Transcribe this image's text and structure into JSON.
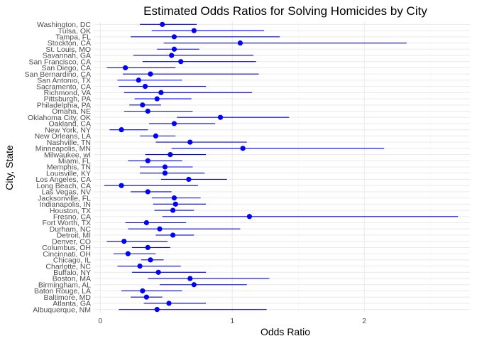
{
  "chart_data": {
    "type": "scatter",
    "title": "Estimated Odds Ratios for Solving Homicides by City",
    "xlabel": "Odds Ratio",
    "ylabel": "City, State",
    "xlim": [
      -0.05,
      2.8
    ],
    "xticks": [
      0,
      1,
      2
    ],
    "xtick_labels": [
      "0",
      "1",
      "2"
    ],
    "grid": true,
    "color": "#0000ff",
    "series": [
      {
        "categories": [
          "Washington, DC",
          "Tulsa, OK",
          "Tampa, FL",
          "Stockton, CA",
          "St. Louis, MO",
          "Savannah, GA",
          "San Francisco, CA",
          "San Diego, CA",
          "San Bernardino, CA",
          "San Antonio, TX",
          "Sacramento, CA",
          "Richmond, VA",
          "Pittsburgh, PA",
          "Philadelphia, PA",
          "Omaha, NE",
          "Oklahoma City, OK",
          "Oakland, CA",
          "New York, NY",
          "New Orleans, LA",
          "Nashville, TN",
          "Minneapolis, MN",
          "Milwaukee, wI",
          "Miami, FL",
          "Memphis, TN",
          "Louisville, KY",
          "Los Angeles, CA",
          "Long Beach, CA",
          "Las Vegas, NV",
          "Jacksonville, FL",
          "Indianapolis, IN",
          "Houston, TX",
          "Fresno, CA",
          "Fort Worth, TX",
          "Durham, NC",
          "Detroit, MI",
          "Denver, CO",
          "Columbus, OH",
          "Cincinnati, OH",
          "Chicago, IL",
          "Charlotte, NC",
          "Buffalo, NY",
          "Boston, MA",
          "Birmingham, AL",
          "Baton Rouge, LA",
          "Baltimore, MD",
          "Atlanta, GA",
          "Albuquerque, NM"
        ],
        "odds_ratio": [
          0.47,
          0.71,
          0.56,
          1.06,
          0.56,
          0.54,
          0.61,
          0.19,
          0.38,
          0.29,
          0.34,
          0.46,
          0.43,
          0.32,
          0.36,
          0.91,
          0.56,
          0.16,
          0.42,
          0.68,
          1.08,
          0.53,
          0.36,
          0.49,
          0.49,
          0.67,
          0.16,
          0.36,
          0.56,
          0.57,
          0.55,
          1.13,
          0.35,
          0.45,
          0.55,
          0.18,
          0.36,
          0.21,
          0.38,
          0.3,
          0.44,
          0.68,
          0.71,
          0.32,
          0.35,
          0.52,
          0.43
        ],
        "ci_low": [
          0.3,
          0.39,
          0.23,
          0.48,
          0.43,
          0.25,
          0.32,
          0.05,
          0.17,
          0.13,
          0.14,
          0.18,
          0.26,
          0.22,
          0.18,
          0.58,
          0.37,
          0.07,
          0.3,
          0.42,
          0.54,
          0.34,
          0.21,
          0.3,
          0.3,
          0.46,
          0.03,
          0.23,
          0.39,
          0.4,
          0.41,
          0.47,
          0.19,
          0.21,
          0.42,
          0.05,
          0.24,
          0.1,
          0.31,
          0.13,
          0.24,
          0.36,
          0.45,
          0.16,
          0.23,
          0.33,
          0.14
        ],
        "ci_high": [
          0.73,
          1.24,
          1.36,
          2.32,
          0.75,
          1.16,
          1.18,
          0.57,
          1.2,
          0.62,
          0.8,
          1.15,
          0.69,
          0.46,
          0.7,
          1.43,
          0.87,
          0.36,
          0.57,
          1.11,
          2.15,
          0.8,
          0.62,
          0.7,
          0.79,
          0.96,
          0.74,
          0.54,
          0.76,
          0.8,
          0.71,
          2.71,
          0.65,
          1.06,
          0.71,
          0.51,
          0.53,
          0.42,
          0.48,
          0.61,
          0.8,
          1.28,
          1.11,
          0.62,
          0.47,
          0.8,
          1.26
        ]
      }
    ]
  }
}
